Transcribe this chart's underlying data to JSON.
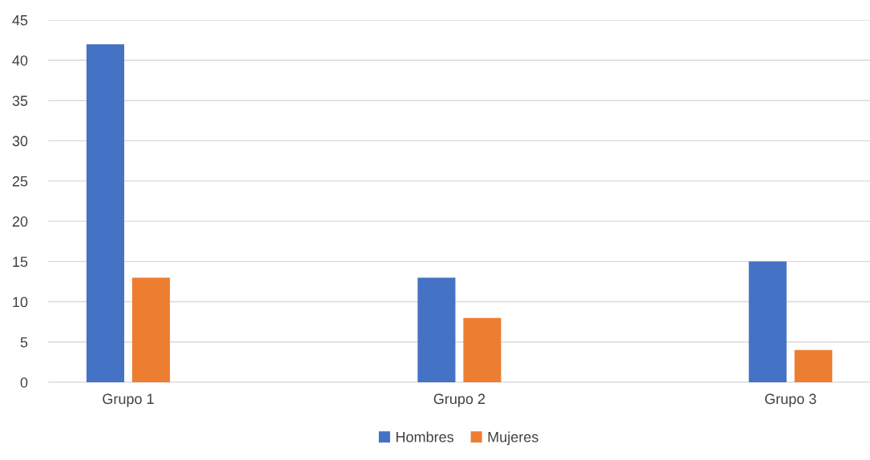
{
  "chart_data": {
    "type": "bar",
    "categories": [
      "Grupo 1",
      "Grupo 2",
      "Grupo 3"
    ],
    "series": [
      {
        "name": "Hombres",
        "color": "#4472c4",
        "values": [
          42,
          13,
          15
        ]
      },
      {
        "name": "Mujeres",
        "color": "#ed7d31",
        "values": [
          13,
          8,
          4
        ]
      }
    ],
    "ylim": [
      0,
      45
    ],
    "yticks": [
      0,
      5,
      10,
      15,
      20,
      25,
      30,
      35,
      40,
      45
    ],
    "grid": "y",
    "legend": "bottom"
  }
}
